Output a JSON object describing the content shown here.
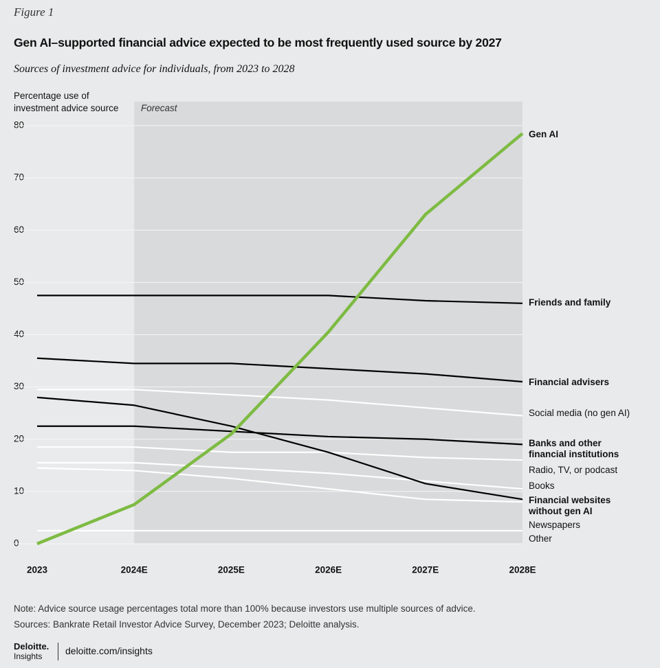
{
  "chart_data": {
    "type": "line",
    "figure_label": "Figure 1",
    "title": "Gen AI–supported financial advice expected to be most frequently used source by 2027",
    "subtitle": "Sources of investment advice for individuals, from 2023 to 2028",
    "y_axis_label": "Percentage use of investment advice source",
    "annotation": "Forecast",
    "categories": [
      "2023",
      "2024E",
      "2025E",
      "2026E",
      "2027E",
      "2028E"
    ],
    "ylim": [
      0,
      80
    ],
    "yticks": [
      0,
      10,
      20,
      30,
      40,
      50,
      60,
      70,
      80
    ],
    "grid": true,
    "series": [
      {
        "name": "Gen AI",
        "color": "#7dbb42",
        "values": [
          0,
          7.5,
          21,
          40.5,
          63,
          78.5
        ]
      },
      {
        "name": "Friends and family",
        "color": "#000000",
        "values": [
          47.5,
          47.5,
          47.5,
          47.5,
          46.5,
          46
        ]
      },
      {
        "name": "Financial advisers",
        "color": "#000000",
        "values": [
          35.5,
          34.5,
          34.5,
          33.5,
          32.5,
          31
        ]
      },
      {
        "name": "Social media (no gen AI)",
        "color": "#ffffff",
        "values": [
          29.5,
          29.5,
          28.5,
          27.5,
          26,
          24.5
        ]
      },
      {
        "name": "Banks and other financial institutions",
        "color": "#000000",
        "values": [
          22.5,
          22.5,
          21.5,
          20.5,
          20,
          19
        ]
      },
      {
        "name": "Radio, TV, or podcast",
        "color": "#ffffff",
        "values": [
          18.5,
          18.5,
          17.5,
          17.5,
          16.5,
          16
        ]
      },
      {
        "name": "Books",
        "color": "#ffffff",
        "values": [
          15.5,
          15.5,
          14.5,
          13.5,
          12,
          10.5
        ]
      },
      {
        "name": "Financial websites without gen AI",
        "color": "#000000",
        "values": [
          28,
          26.5,
          22.5,
          17.5,
          11.5,
          8.5
        ]
      },
      {
        "name": "Newspapers",
        "color": "#ffffff",
        "values": [
          14.5,
          14,
          12.5,
          10.5,
          8.5,
          8
        ]
      },
      {
        "name": "Other",
        "color": "#ffffff",
        "values": [
          2.5,
          2.5,
          2.5,
          2.5,
          2.5,
          2.5
        ]
      }
    ],
    "note": "Note: Advice source usage percentages total more than 100% because investors use multiple sources of advice.",
    "source": "Sources: Bankrate Retail Investor Advice Survey, December 2023; Deloitte analysis."
  },
  "footer": {
    "brand": "Deloitte.",
    "sub": "Insights",
    "url": "deloitte.com/insights"
  }
}
